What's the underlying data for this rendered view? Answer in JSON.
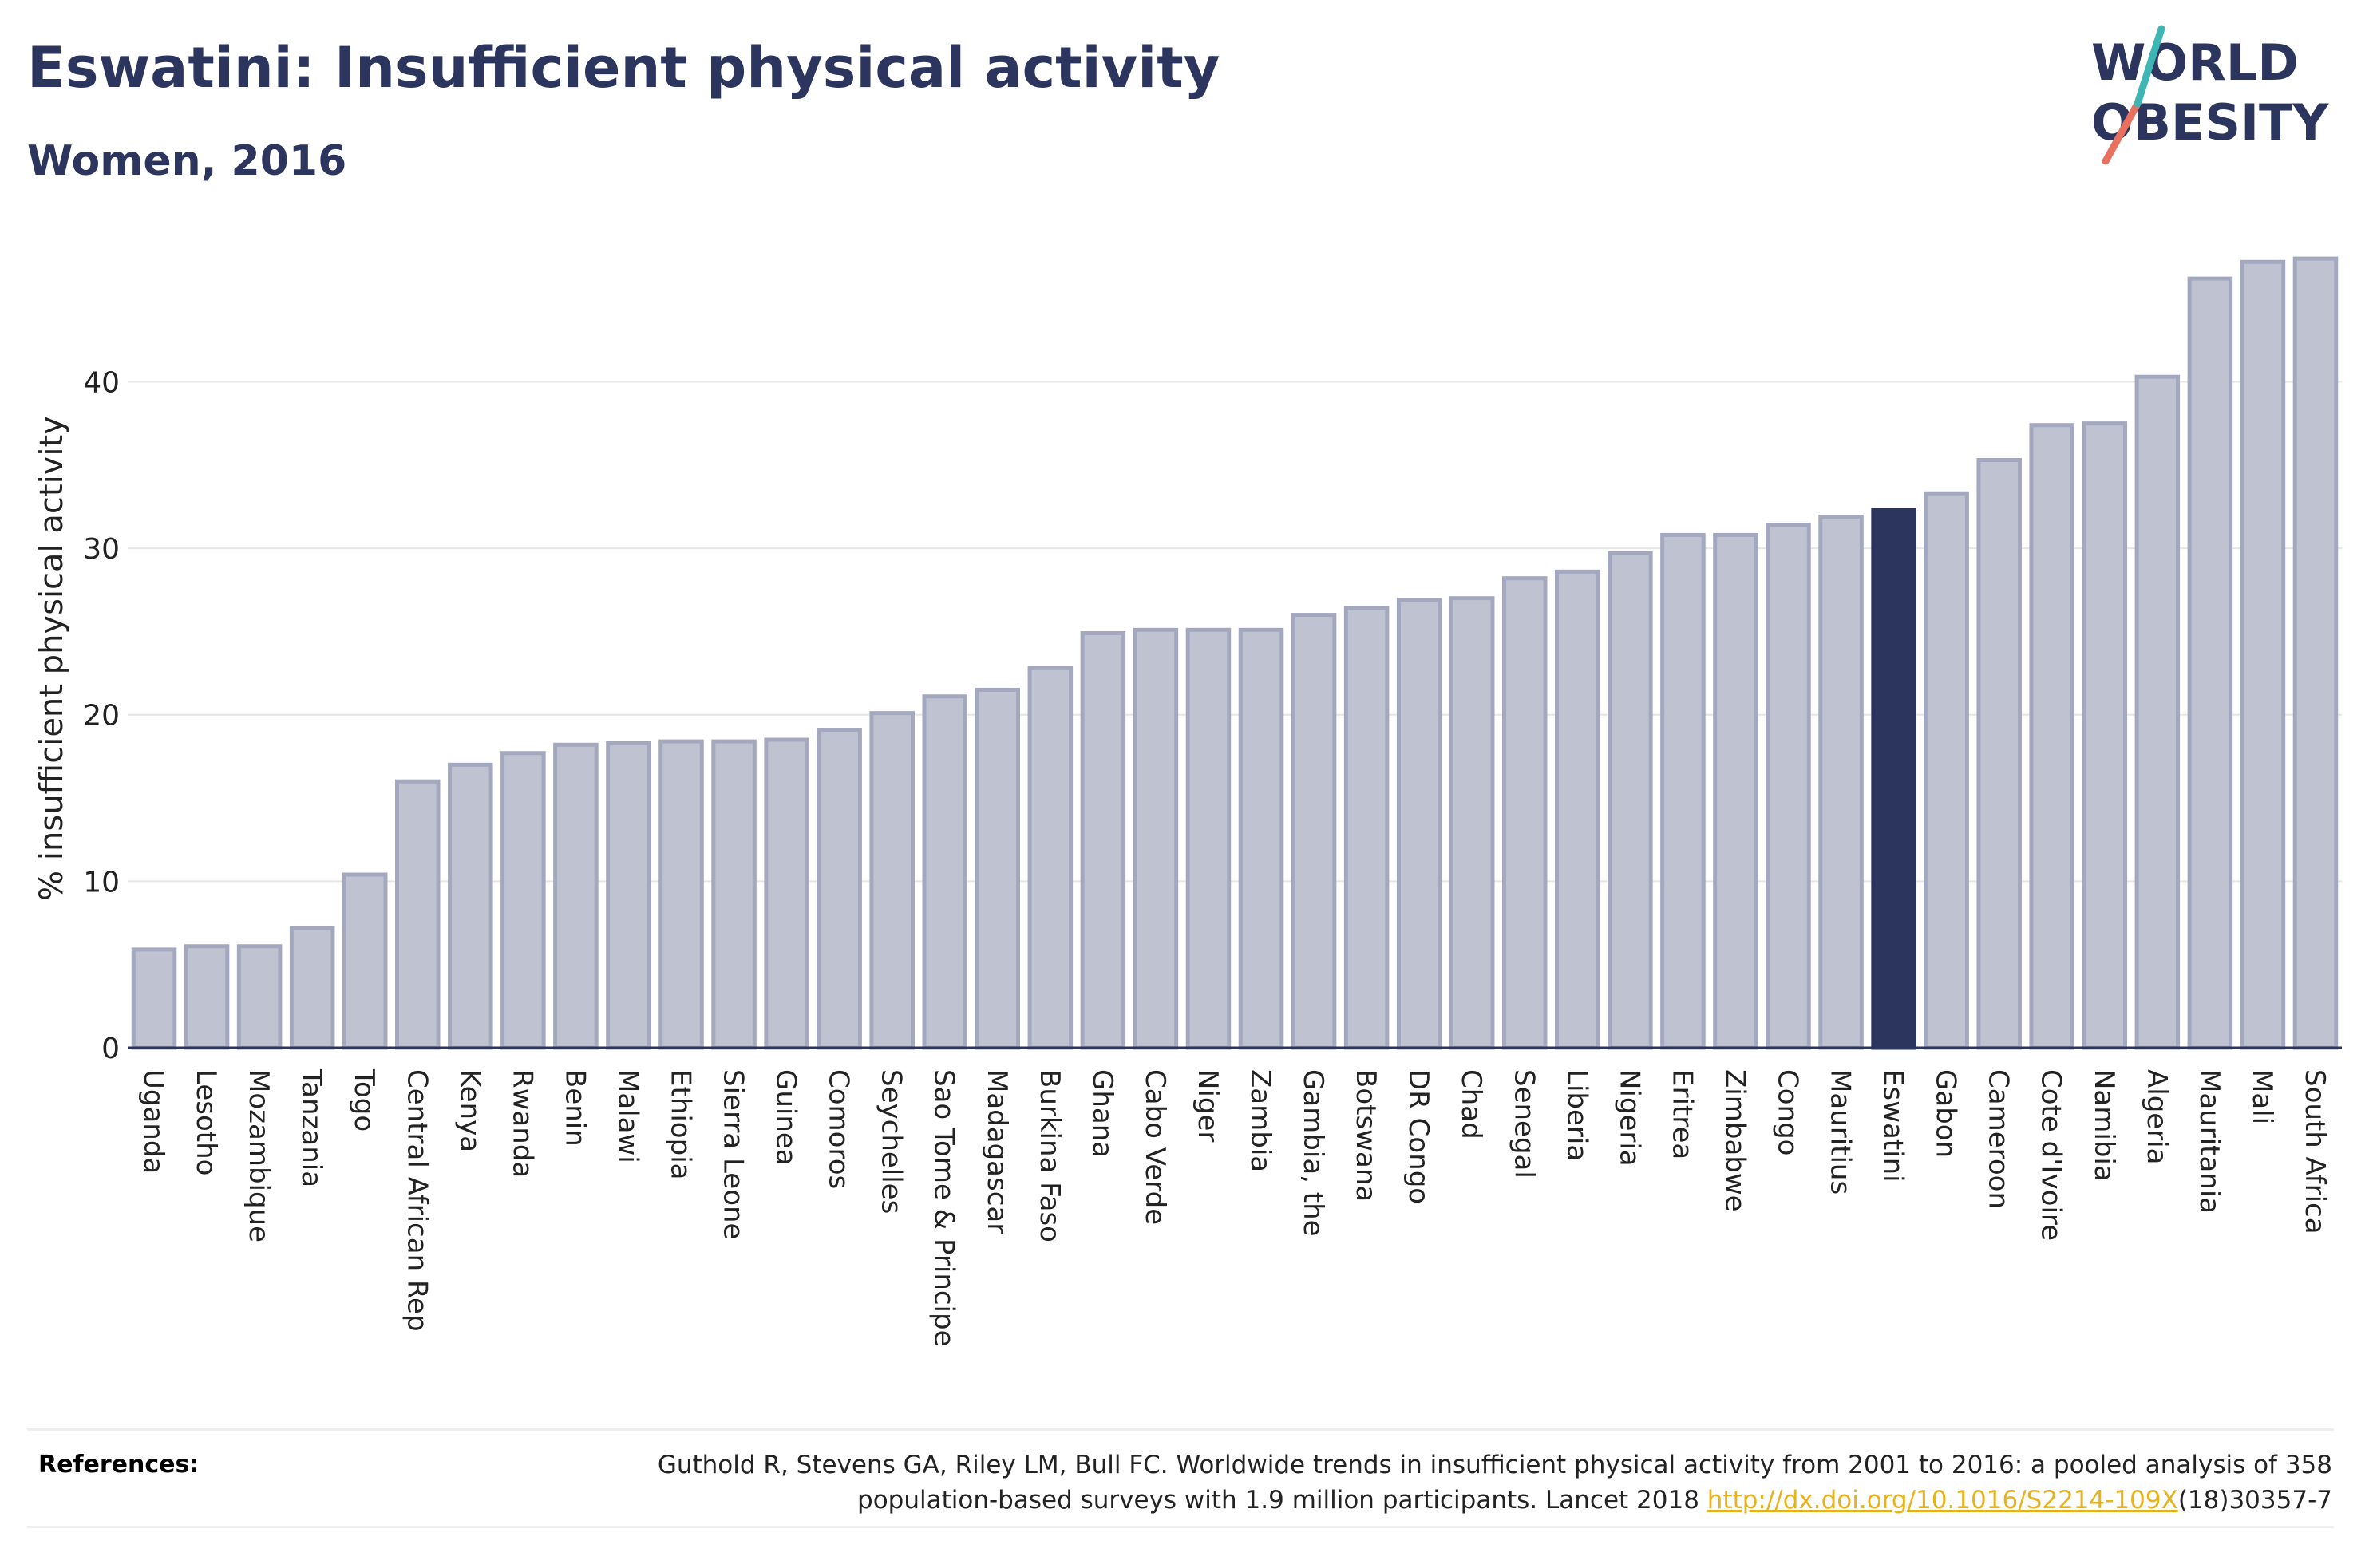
{
  "header": {
    "title": "Eswatini: Insufficient physical activity",
    "subtitle": "Women, 2016"
  },
  "logo": {
    "line1": "WORLD",
    "line2": "OBESITY",
    "colors": {
      "text": "#2c355e",
      "slash_teal": "#3fb6b4",
      "slash_coral": "#e8705f"
    }
  },
  "references": {
    "label": "References:",
    "line1": "Guthold R, Stevens GA, Riley LM, Bull FC. Worldwide trends in insufficient physical activity from 2001 to 2016: a pooled analysis of 358",
    "line2_prefix": "population-based surveys with 1.9 million participants. Lancet 2018 ",
    "link": "http://dx.doi.org/10.1016/S2214-109X",
    "line2_suffix": "(18)30357-7"
  },
  "colors": {
    "bar": "#bfc3d1",
    "bar_border": "#a3a8bf",
    "highlight": "#2c355e",
    "grid": "#e6e6e6",
    "axis": "#2c355e"
  },
  "chart_data": {
    "type": "bar",
    "title": "Eswatini: Insufficient physical activity",
    "subtitle": "Women, 2016",
    "ylabel": "% insufficient physical activity",
    "xlabel": "",
    "ylim": [
      0,
      47.5
    ],
    "yticks": [
      0,
      10,
      20,
      30,
      40
    ],
    "grid": true,
    "highlight": "Eswatini",
    "categories": [
      "Uganda",
      "Lesotho",
      "Mozambique",
      "Tanzania",
      "Togo",
      "Central African Rep",
      "Kenya",
      "Rwanda",
      "Benin",
      "Malawi",
      "Ethiopia",
      "Sierra Leone",
      "Guinea",
      "Comoros",
      "Seychelles",
      "Sao Tome & Principe",
      "Madagascar",
      "Burkina Faso",
      "Ghana",
      "Cabo Verde",
      "Niger",
      "Zambia",
      "Gambia, the",
      "Botswana",
      "DR Congo",
      "Chad",
      "Senegal",
      "Liberia",
      "Nigeria",
      "Eritrea",
      "Zimbabwe",
      "Congo",
      "Mauritius",
      "Eswatini",
      "Gabon",
      "Cameroon",
      "Cote d'Ivoire",
      "Namibia",
      "Algeria",
      "Mauritania",
      "Mali",
      "South Africa"
    ],
    "values": [
      5.9,
      6.1,
      6.1,
      7.2,
      10.4,
      16.0,
      17.0,
      17.7,
      18.2,
      18.3,
      18.4,
      18.4,
      18.5,
      19.1,
      20.1,
      21.1,
      21.5,
      22.8,
      24.9,
      25.1,
      25.1,
      25.1,
      26.0,
      26.4,
      26.9,
      27.0,
      28.2,
      28.6,
      29.7,
      30.8,
      30.8,
      31.4,
      31.9,
      32.3,
      33.3,
      35.3,
      37.4,
      37.5,
      40.3,
      46.2,
      47.2,
      47.4
    ]
  }
}
